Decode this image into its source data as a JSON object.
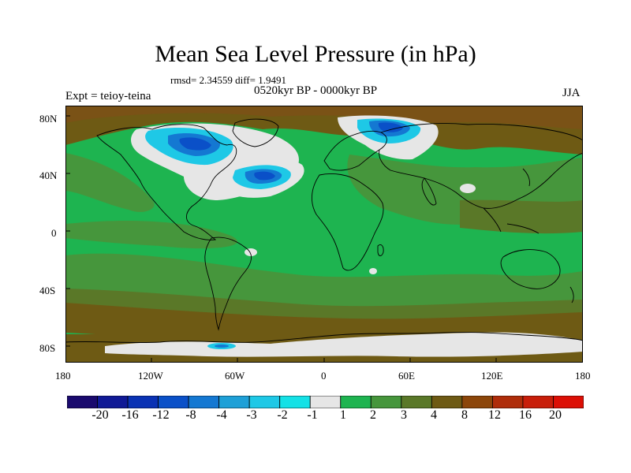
{
  "title": "Mean Sea Level Pressure (in hPa)",
  "stats": "rmsd= 2.34559 diff= 1.9491",
  "subtitle": "0520kyr BP - 0000kyr BP",
  "expt": "Expt = teioy-teina",
  "season": "JJA",
  "lat_labels": [
    "80N",
    "40N",
    "0",
    "40S",
    "80S"
  ],
  "lon_labels": [
    "180",
    "120W",
    "60W",
    "0",
    "60E",
    "120E",
    "180"
  ],
  "colorbar": {
    "colors": [
      "#1a0a6e",
      "#101a96",
      "#0a32b4",
      "#0a50c8",
      "#1478d2",
      "#1ea0d7",
      "#1ec8e6",
      "#14e1e6",
      "#e6e6e6",
      "#1eb450",
      "#46963c",
      "#5a7828",
      "#6e5a14",
      "#8c460a",
      "#af2d0a",
      "#c81e0a",
      "#dc0f05"
    ],
    "labels": [
      "-20",
      "-16",
      "-12",
      "-8",
      "-4",
      "-3",
      "-2",
      "-1",
      "1",
      "2",
      "3",
      "4",
      "8",
      "12",
      "16",
      "20"
    ]
  }
}
